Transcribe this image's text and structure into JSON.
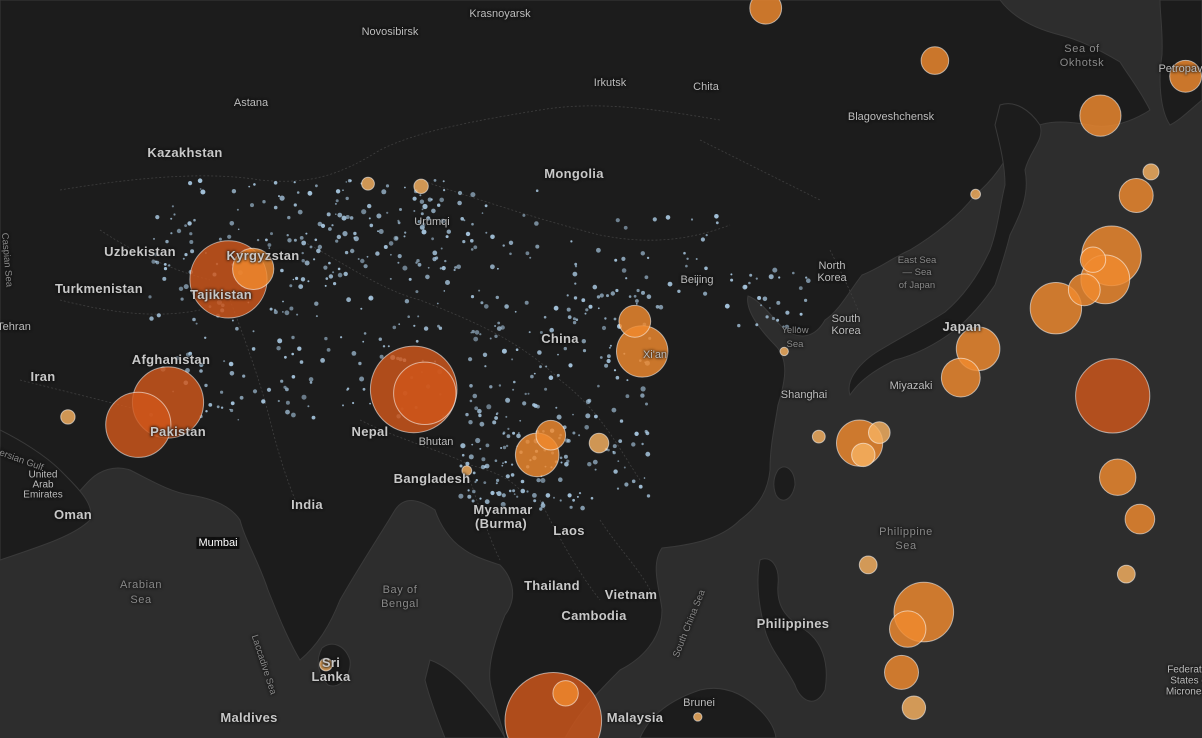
{
  "map": {
    "accent_large": "#d0571b",
    "accent_medium": "#f08a2e",
    "accent_small": "#f6b160",
    "dot_color": "#a9c9e2",
    "country_labels": [
      "Kazakhstan",
      "Mongolia",
      "Uzbekistan",
      "Kyrgyzstan",
      "Turkmenistan",
      "Tajikistan",
      "Afghanistan",
      "Iran",
      "Pakistan",
      "China",
      "Nepal",
      "Bhutan",
      "Bangladesh",
      "India",
      "Myanmar",
      "(Burma)",
      "Laos",
      "Thailand",
      "Vietnam",
      "Cambodia",
      "Philippines",
      "Malaysia",
      "Brunei",
      "Sri",
      "Lanka",
      "Maldives",
      "Oman",
      "United",
      "Arab",
      "Emirates",
      "North",
      "Korea",
      "South",
      "Korea",
      "Japan",
      "Federated",
      "States of",
      "Micronesia"
    ],
    "city_labels": [
      "Krasnoyarsk",
      "Novosibirsk",
      "Astana",
      "Irkutsk",
      "Chita",
      "Blagoveshchensk",
      "Urumqi",
      "Beijing",
      "Xi'an",
      "Shanghai",
      "Miyazaki",
      "Petropavlovsk",
      "Tehran"
    ],
    "city_tag": "Mumbai",
    "sea_labels": [
      "Sea of",
      "Okhotsk",
      "East Sea",
      "— Sea",
      "of Japan",
      "Yellow",
      "Sea",
      "Philippine",
      "Sea",
      "Arabian",
      "Sea",
      "Bay of",
      "Bengal",
      "South China Sea",
      "Laccadive Sea",
      "Persian Gulf",
      "Caspian Sea"
    ],
    "earthquakes": [
      {
        "lon": 115.5,
        "lat": 31.0,
        "mag": 4.5
      },
      {
        "lon": 153.5,
        "lat": 54.8,
        "mag": 7.7
      },
      {
        "lon": 148.0,
        "lat": 52.0,
        "mag": 5.8
      },
      {
        "lon": 127.7,
        "lat": 53.2,
        "mag": 5.6
      },
      {
        "lon": 141.1,
        "lat": 49.0,
        "mag": 6.2
      },
      {
        "lon": 144.0,
        "lat": 42.9,
        "mag": 5.9
      },
      {
        "lon": 141.5,
        "lat": 36.5,
        "mag": 6.5
      },
      {
        "lon": 142.0,
        "lat": 38.3,
        "mag": 6.9
      },
      {
        "lon": 137.5,
        "lat": 34.3,
        "mag": 6.6
      },
      {
        "lon": 131.2,
        "lat": 31.2,
        "mag": 6.3
      },
      {
        "lon": 129.8,
        "lat": 29.0,
        "mag": 6.1
      },
      {
        "lon": 142.1,
        "lat": 27.6,
        "mag": 7.4
      },
      {
        "lon": 121.6,
        "lat": 24.0,
        "mag": 6.4
      },
      {
        "lon": 121.9,
        "lat": 23.1,
        "mag": 5.4
      },
      {
        "lon": 126.8,
        "lat": 11.1,
        "mag": 6.9
      },
      {
        "lon": 125.5,
        "lat": 9.8,
        "mag": 6.0
      },
      {
        "lon": 125.0,
        "lat": 6.5,
        "mag": 5.9
      },
      {
        "lon": 96.8,
        "lat": 2.8,
        "mag": 8.1
      },
      {
        "lon": 97.8,
        "lat": 4.9,
        "mag": 5.5
      },
      {
        "lon": 85.5,
        "lat": 28.1,
        "mag": 7.8
      },
      {
        "lon": 86.4,
        "lat": 27.8,
        "mag": 7.0
      },
      {
        "lon": 70.5,
        "lat": 36.5,
        "mag": 7.5
      },
      {
        "lon": 72.5,
        "lat": 37.3,
        "mag": 6.2
      },
      {
        "lon": 65.6,
        "lat": 27.1,
        "mag": 7.3
      },
      {
        "lon": 63.2,
        "lat": 25.4,
        "mag": 7.1
      },
      {
        "lon": 104.0,
        "lat": 31.0,
        "mag": 6.6
      },
      {
        "lon": 103.4,
        "lat": 33.3,
        "mag": 5.8
      },
      {
        "lon": 95.5,
        "lat": 23.1,
        "mag": 6.3
      },
      {
        "lon": 96.6,
        "lat": 24.6,
        "mag": 5.7
      },
      {
        "lon": 100.5,
        "lat": 24.0,
        "mag": 5.2
      },
      {
        "lon": 114.0,
        "lat": 57.2,
        "mag": 5.8
      },
      {
        "lon": 142.5,
        "lat": 21.4,
        "mag": 6.0
      },
      {
        "lon": 144.3,
        "lat": 18.2,
        "mag": 5.7
      },
      {
        "lon": 143.2,
        "lat": 14.0,
        "mag": 5.1
      },
      {
        "lon": 139.8,
        "lat": 35.7,
        "mag": 5.8
      },
      {
        "lon": 140.5,
        "lat": 38.0,
        "mag": 5.5
      },
      {
        "lon": 123.2,
        "lat": 24.8,
        "mag": 5.3
      },
      {
        "lon": 118.3,
        "lat": 24.5,
        "mag": 4.8
      },
      {
        "lon": 122.3,
        "lat": 14.7,
        "mag": 5.1
      },
      {
        "lon": 126.0,
        "lat": 3.8,
        "mag": 5.4
      },
      {
        "lon": 78.4,
        "lat": 7.1,
        "mag": 4.8
      },
      {
        "lon": 108.5,
        "lat": 3.1,
        "mag": 4.5
      },
      {
        "lon": 57.5,
        "lat": 26.0,
        "mag": 4.9
      },
      {
        "lon": 131.0,
        "lat": 43.0,
        "mag": 4.6
      },
      {
        "lon": 145.2,
        "lat": 44.7,
        "mag": 5.0
      },
      {
        "lon": 151.7,
        "lat": 46.8,
        "mag": 5.4
      },
      {
        "lon": 156.5,
        "lat": 49.1,
        "mag": 5.5
      },
      {
        "lon": 86.1,
        "lat": 43.6,
        "mag": 4.9
      },
      {
        "lon": 81.8,
        "lat": 43.8,
        "mag": 4.8
      },
      {
        "lon": 89.8,
        "lat": 21.9,
        "mag": 4.6
      }
    ]
  }
}
